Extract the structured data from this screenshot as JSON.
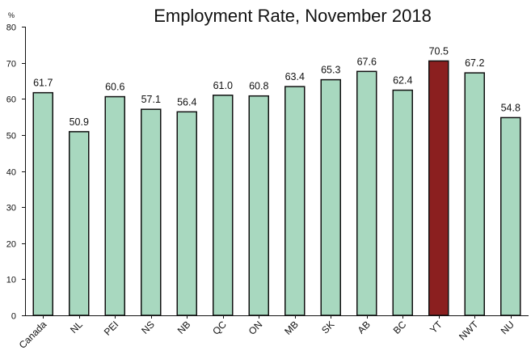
{
  "chart_data": {
    "type": "bar",
    "title": "Employment Rate, November 2018",
    "ylabel": "%",
    "xlabel": "",
    "ylim": [
      0,
      80
    ],
    "yticks": [
      0,
      10,
      20,
      30,
      40,
      50,
      60,
      70,
      80
    ],
    "grid": false,
    "categories": [
      "Canada",
      "NL",
      "PEI",
      "NS",
      "NB",
      "QC",
      "ON",
      "MB",
      "SK",
      "AB",
      "BC",
      "YT",
      "NWT",
      "NU"
    ],
    "values": [
      61.7,
      50.9,
      60.6,
      57.1,
      56.4,
      61.0,
      60.8,
      63.4,
      65.3,
      67.6,
      62.4,
      70.5,
      67.2,
      54.8
    ],
    "value_labels": [
      "61.7",
      "50.9",
      "60.6",
      "57.1",
      "56.4",
      "61.0",
      "60.8",
      "63.4",
      "65.3",
      "67.6",
      "62.4",
      "70.5",
      "67.2",
      "54.8"
    ],
    "colors": {
      "default": "#a8d8bf",
      "highlight": "#8b1f1f",
      "outline": "#111111"
    },
    "highlight_category": "YT"
  }
}
